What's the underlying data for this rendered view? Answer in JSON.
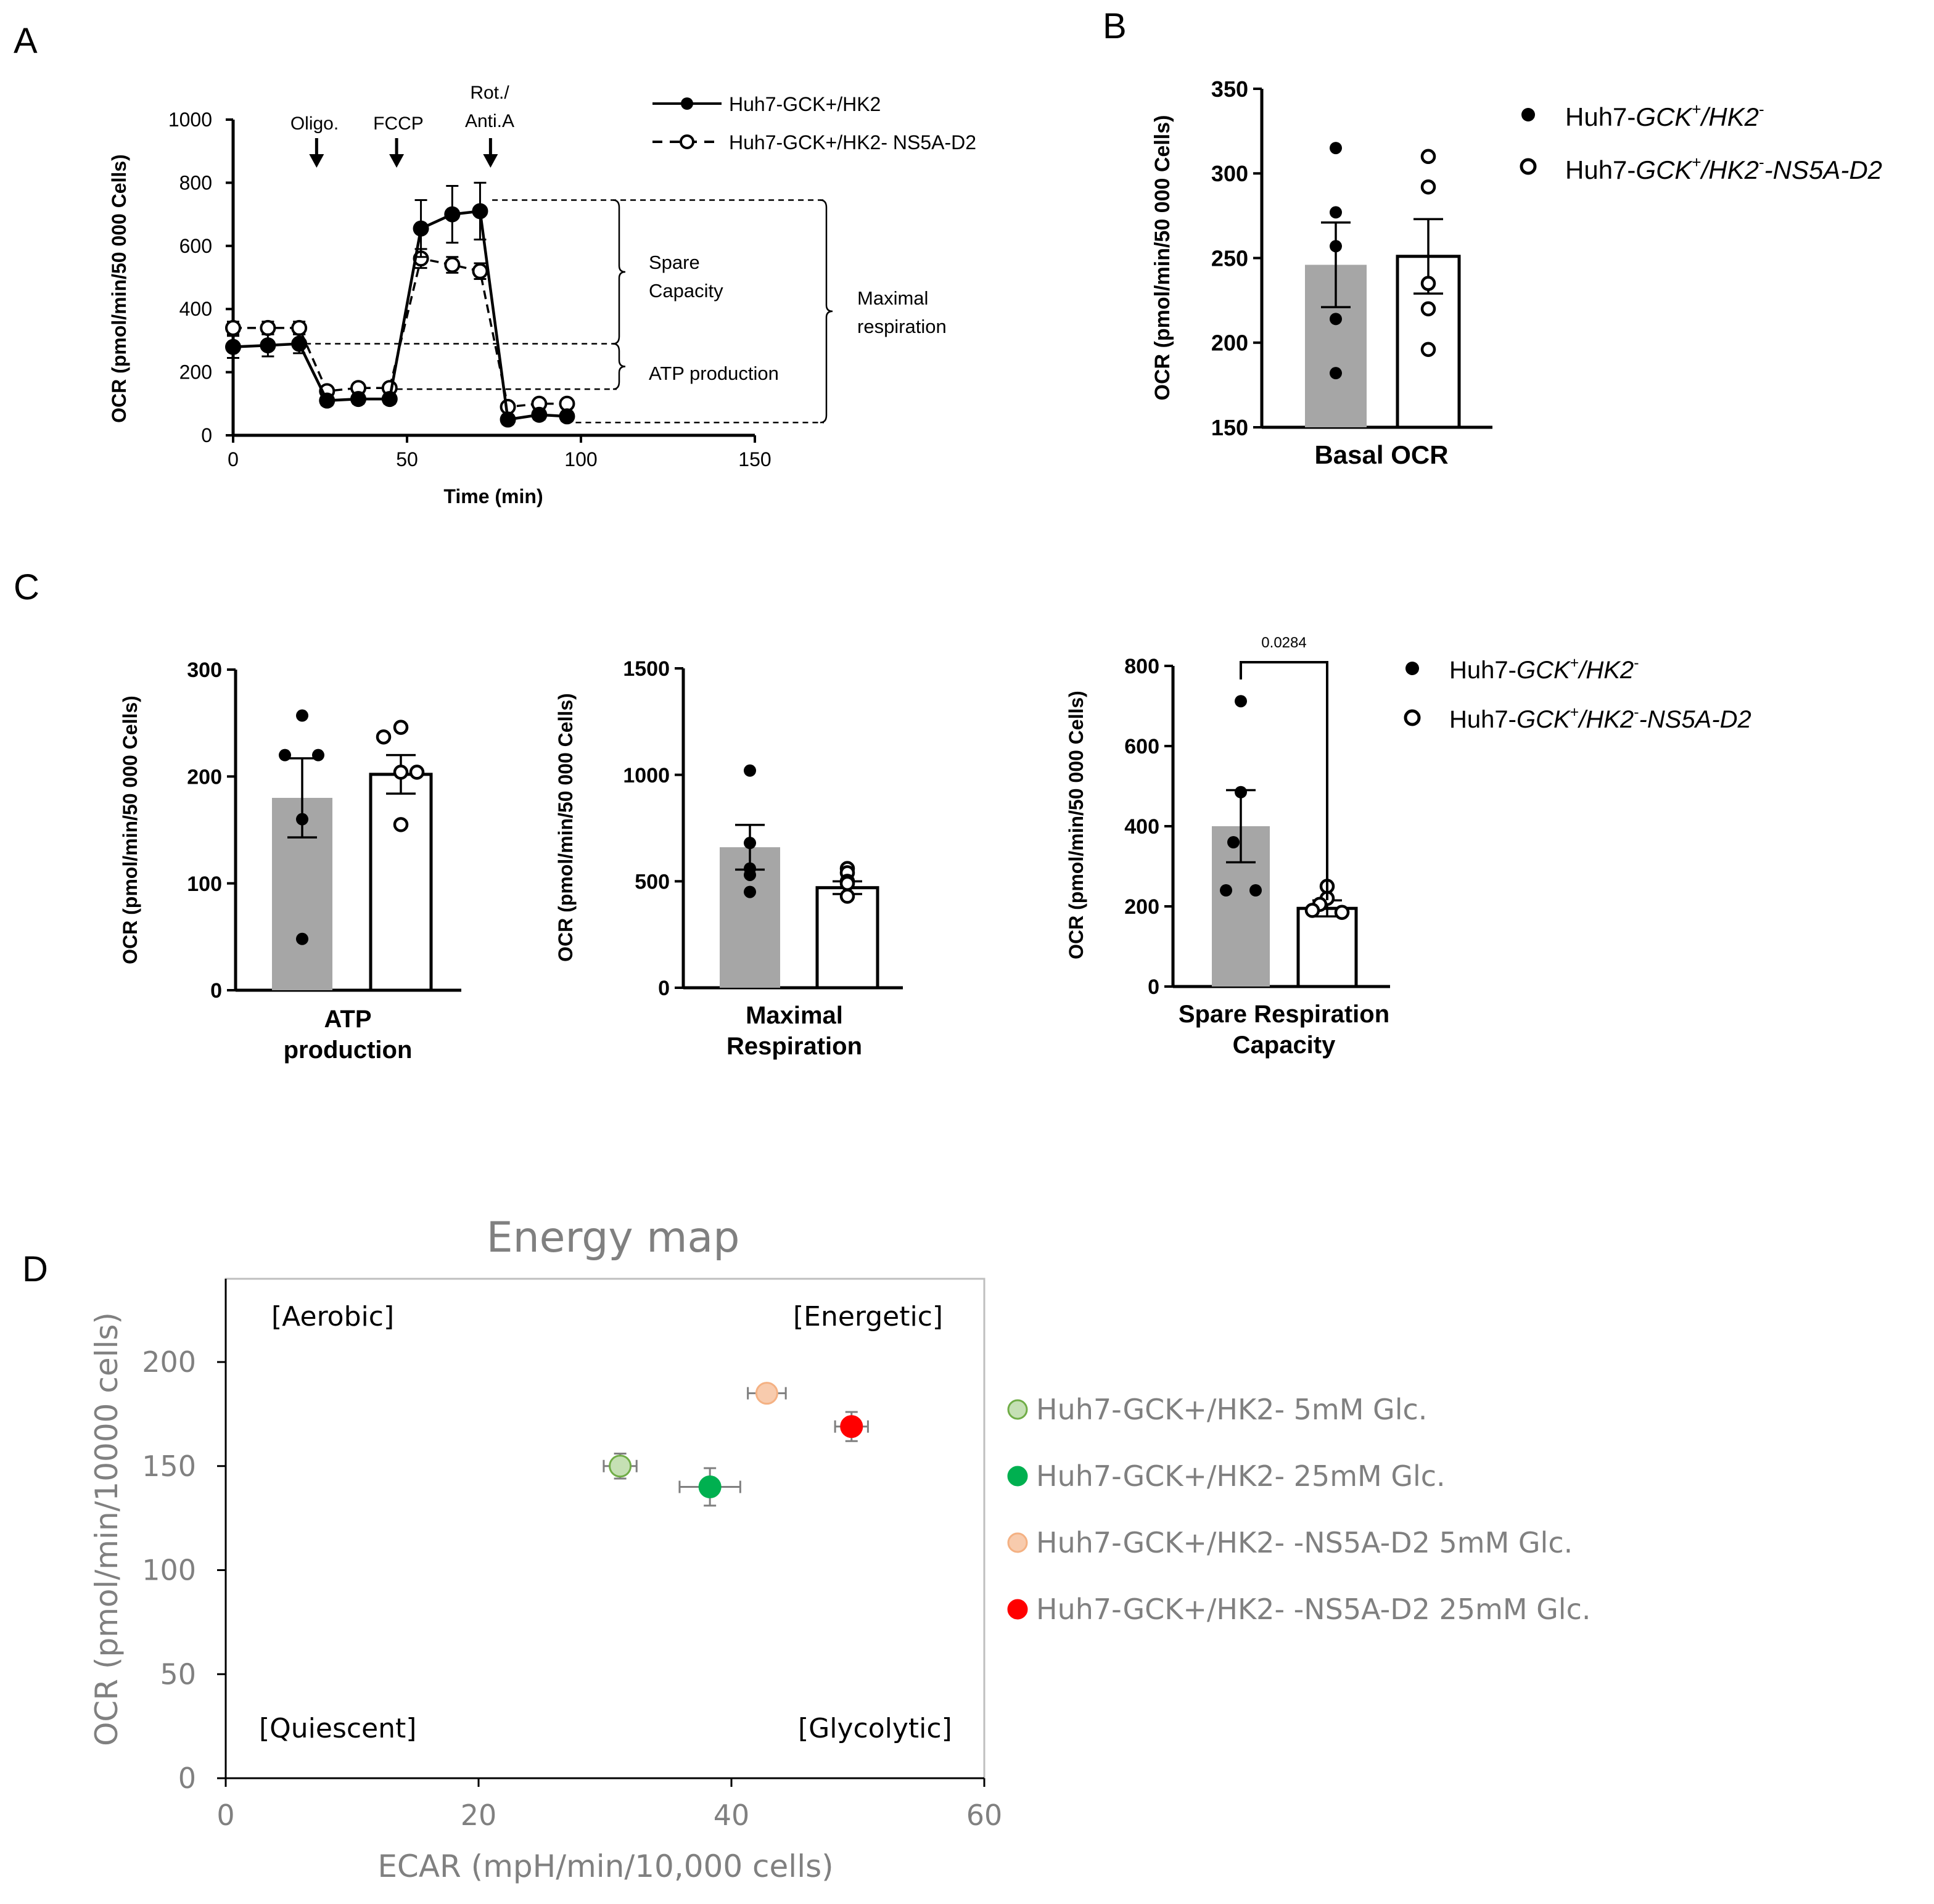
{
  "panels": {
    "A": "A",
    "B": "B",
    "C": "C",
    "D": "D"
  },
  "legend_groups": {
    "ctrl_prefix": "Huh7-",
    "ctrl_it1": "GCK",
    "ctrl_sup1": "+",
    "ctrl_it2": "/HK2",
    "ctrl_sup2": "-",
    "ns_prefix": "Huh7-",
    "ns_it1": "GCK",
    "ns_sup1": "+",
    "ns_it2": "/HK2",
    "ns_sup2": "-",
    "ns_it3": "-NS5A-D2"
  },
  "chart_data": [
    {
      "id": "A",
      "type": "line",
      "title": "",
      "xlabel": "Time  (min)",
      "ylabel": "OCR (pmol/min/50 000 Cells)",
      "xlim": [
        0,
        150
      ],
      "ylim": [
        0,
        1000
      ],
      "xticks": [
        0,
        50,
        100,
        150
      ],
      "yticks": [
        0,
        200,
        400,
        600,
        800,
        1000
      ],
      "x": [
        0,
        10,
        19,
        27,
        36,
        45,
        54,
        63,
        71,
        79,
        88,
        96
      ],
      "series": [
        {
          "name": "Huh7-GCK+/HK2",
          "marker": "filled",
          "line": "solid",
          "values": [
            280,
            285,
            290,
            110,
            115,
            115,
            655,
            700,
            710,
            50,
            65,
            60
          ],
          "errors": [
            35,
            35,
            30,
            15,
            15,
            15,
            90,
            90,
            90,
            15,
            15,
            15
          ]
        },
        {
          "name": "Huh7-GCK+/HK2- NS5A-D2",
          "marker": "open",
          "line": "dashed",
          "values": [
            340,
            340,
            340,
            140,
            150,
            150,
            560,
            540,
            520,
            90,
            100,
            100
          ],
          "errors": [
            20,
            20,
            20,
            10,
            10,
            10,
            30,
            25,
            25,
            10,
            10,
            10
          ]
        }
      ],
      "injections": [
        {
          "label": "Oligo.",
          "x": 24
        },
        {
          "label": "FCCP",
          "x": 47
        },
        {
          "label": "Rot./",
          "label2": "Anti.A",
          "x": 74
        }
      ],
      "annotations": {
        "spare1": "Spare",
        "spare2": "Capacity",
        "atp": "ATP production",
        "max1": "Maximal",
        "max2": "respiration",
        "level_max": 710,
        "level_basal": 290,
        "level_oligo": 115,
        "level_rot": 60
      }
    },
    {
      "id": "B",
      "type": "bar",
      "categories": [
        "Basal OCR"
      ],
      "ylabel": "OCR (pmol/min/50 000 Cells)",
      "ylim": [
        150,
        350
      ],
      "yticks": [
        150,
        200,
        250,
        300,
        350
      ],
      "series": [
        {
          "name": "Huh7-GCK+/HK2-",
          "fill": "gray",
          "mean": 246,
          "sem": 25,
          "points": [
            315,
            277,
            257,
            214,
            182
          ]
        },
        {
          "name": "Huh7-GCK+/HK2--NS5A-D2",
          "fill": "white",
          "mean": 251,
          "sem": 22,
          "points": [
            310,
            292,
            235,
            220,
            196
          ]
        }
      ]
    },
    {
      "id": "C1",
      "type": "bar",
      "label1": "ATP",
      "label2": "production",
      "ylabel": "OCR (pmol/min/50 000 Cells)",
      "ylim": [
        0,
        300
      ],
      "yticks": [
        0,
        100,
        200,
        300
      ],
      "series": [
        {
          "name": "Huh7-GCK+/HK2-",
          "fill": "gray",
          "mean": 180,
          "sem": 37,
          "points": [
            257,
            220,
            220,
            160,
            48
          ]
        },
        {
          "name": "Huh7-GCK+/HK2--NS5A-D2",
          "fill": "white",
          "mean": 202,
          "sem": 18,
          "points": [
            246,
            237,
            204,
            204,
            155
          ]
        }
      ]
    },
    {
      "id": "C2",
      "type": "bar",
      "label1": "Maximal",
      "label2": "Respiration",
      "ylabel": "OCR (pmol/min/50 000 Cells)",
      "ylim": [
        0,
        1500
      ],
      "yticks": [
        0,
        500,
        1000,
        1500
      ],
      "series": [
        {
          "name": "Huh7-GCK+/HK2-",
          "fill": "gray",
          "mean": 660,
          "sem": 105,
          "points": [
            1020,
            680,
            560,
            530,
            450
          ]
        },
        {
          "name": "Huh7-GCK+/HK2--NS5A-D2",
          "fill": "white",
          "mean": 470,
          "sem": 30,
          "points": [
            560,
            540,
            500,
            490,
            430
          ]
        }
      ]
    },
    {
      "id": "C3",
      "type": "bar",
      "label1": "Spare Respiration",
      "label2": "Capacity",
      "ylabel": "OCR (pmol/min/50 000 Cells)",
      "ylim": [
        0,
        800
      ],
      "yticks": [
        0,
        200,
        400,
        600,
        800
      ],
      "pvalue": "0.0284",
      "series": [
        {
          "name": "Huh7-GCK+/HK2-",
          "fill": "gray",
          "mean": 400,
          "sem": 90,
          "points": [
            712,
            485,
            360,
            240,
            240
          ]
        },
        {
          "name": "Huh7-GCK+/HK2--NS5A-D2",
          "fill": "white",
          "mean": 195,
          "sem": 20,
          "points": [
            250,
            220,
            205,
            190,
            185
          ]
        }
      ]
    },
    {
      "id": "D",
      "type": "scatter",
      "title": "Energy map",
      "xlabel": "ECAR (mpH/min/10,000 cells)",
      "ylabel": "OCR (pmol/min/10000 cells)",
      "xlim": [
        0,
        60
      ],
      "ylim": [
        0,
        240
      ],
      "xticks": [
        0,
        20,
        40,
        60
      ],
      "yticks": [
        0,
        50,
        100,
        150,
        200
      ],
      "quadrants": {
        "aerobic": "[Aerobic]",
        "energetic": "[Energetic]",
        "quiescent": "[Quiescent]",
        "glycolytic": "[Glycolytic]"
      },
      "series": [
        {
          "name": "Huh7-GCK+/HK2-  5mM Glc.",
          "color": "#c5e0b4",
          "stroke": "#70ad47",
          "x": 31.2,
          "y": 150,
          "xerr": 1.3,
          "yerr": 6
        },
        {
          "name": "Huh7-GCK+/HK2-  25mM Glc.",
          "color": "#00b050",
          "stroke": "#00b050",
          "x": 38.3,
          "y": 140,
          "xerr": 2.4,
          "yerr": 9
        },
        {
          "name": "Huh7-GCK+/HK2-  -NS5A-D2  5mM Glc.",
          "color": "#f8cbad",
          "stroke": "#f4b183",
          "x": 42.8,
          "y": 185,
          "xerr": 1.5,
          "yerr": 4
        },
        {
          "name": "Huh7-GCK+/HK2-  -NS5A-D2 25mM Glc.",
          "color": "#ff0000",
          "stroke": "#ff0000",
          "x": 49.5,
          "y": 169,
          "xerr": 1.3,
          "yerr": 7
        }
      ]
    }
  ]
}
